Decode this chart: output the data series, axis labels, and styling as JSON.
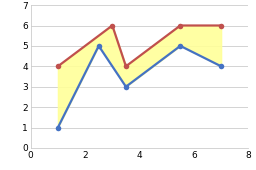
{
  "blue_x": [
    1,
    2.5,
    3.5,
    5.5,
    7
  ],
  "blue_y": [
    1,
    5,
    3,
    5,
    4
  ],
  "red_x": [
    1,
    3,
    3.5,
    5.5,
    7
  ],
  "red_y": [
    4,
    6,
    4,
    6,
    6
  ],
  "fill_color": "#FFFF99",
  "fill_alpha": 0.9,
  "blue_color": "#4472C4",
  "red_color": "#C0504D",
  "xlim": [
    0,
    8
  ],
  "ylim": [
    0,
    7
  ],
  "xticks": [
    0,
    2,
    4,
    6,
    8
  ],
  "yticks": [
    0,
    1,
    2,
    3,
    4,
    5,
    6,
    7
  ],
  "line_width": 1.6,
  "marker": "o",
  "marker_size": 4,
  "bg_color": "#FFFFFF",
  "grid_color": "#CCCCCC"
}
